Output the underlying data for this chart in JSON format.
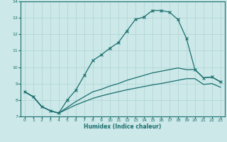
{
  "xlabel": "Humidex (Indice chaleur)",
  "bg_color": "#cce8e8",
  "grid_color": "#aed4d4",
  "line_color": "#1a6e6e",
  "xlim": [
    -0.5,
    23.5
  ],
  "ylim": [
    7,
    14
  ],
  "xticks": [
    0,
    1,
    2,
    3,
    4,
    5,
    6,
    7,
    8,
    9,
    10,
    11,
    12,
    13,
    14,
    15,
    16,
    17,
    18,
    19,
    20,
    21,
    22,
    23
  ],
  "yticks": [
    7,
    8,
    9,
    10,
    11,
    12,
    13,
    14
  ],
  "line1_x": [
    0,
    1,
    2,
    3,
    4,
    5,
    6,
    7,
    8,
    9,
    10,
    11,
    12,
    13,
    14,
    15,
    16,
    17,
    18,
    19,
    20,
    21,
    22,
    23
  ],
  "line1_y": [
    8.5,
    8.2,
    7.6,
    7.35,
    7.2,
    8.0,
    8.6,
    9.5,
    10.4,
    10.75,
    11.15,
    11.5,
    12.2,
    12.9,
    13.05,
    13.45,
    13.45,
    13.35,
    12.9,
    11.75,
    9.85,
    9.35,
    9.4,
    9.1
  ],
  "line2_x": [
    0,
    1,
    2,
    3,
    4,
    5,
    6,
    7,
    8,
    9,
    10,
    11,
    12,
    13,
    14,
    15,
    16,
    17,
    18,
    19,
    20,
    21,
    22,
    23
  ],
  "line2_y": [
    8.5,
    8.2,
    7.6,
    7.35,
    7.2,
    7.55,
    7.9,
    8.2,
    8.5,
    8.65,
    8.85,
    9.0,
    9.2,
    9.35,
    9.5,
    9.65,
    9.75,
    9.85,
    9.95,
    9.85,
    9.85,
    9.35,
    9.4,
    9.1
  ],
  "line3_x": [
    0,
    1,
    2,
    3,
    4,
    5,
    6,
    7,
    8,
    9,
    10,
    11,
    12,
    13,
    14,
    15,
    16,
    17,
    18,
    19,
    20,
    21,
    22,
    23
  ],
  "line3_y": [
    8.5,
    8.2,
    7.6,
    7.35,
    7.2,
    7.45,
    7.7,
    7.9,
    8.1,
    8.25,
    8.38,
    8.5,
    8.62,
    8.72,
    8.82,
    8.92,
    9.0,
    9.1,
    9.2,
    9.3,
    9.3,
    8.95,
    9.0,
    8.78
  ]
}
